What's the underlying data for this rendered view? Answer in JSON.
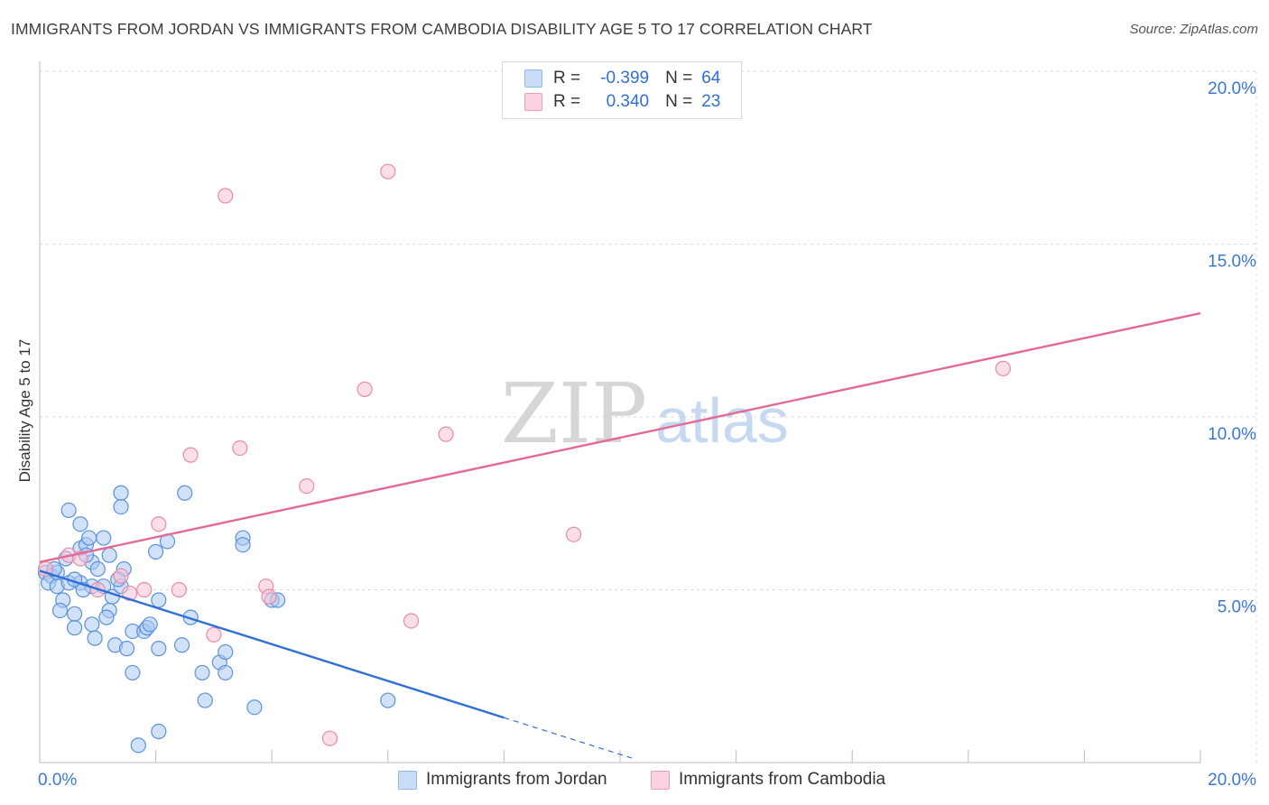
{
  "header": {
    "title": "IMMIGRANTS FROM JORDAN VS IMMIGRANTS FROM CAMBODIA DISABILITY AGE 5 TO 17 CORRELATION CHART",
    "source": "Source: ZipAtlas.com"
  },
  "watermark": {
    "zip": "ZIP",
    "atlas": "atlas"
  },
  "legend": {
    "r_label": "R =",
    "n_label": "N =",
    "rows": [
      {
        "r": "-0.399",
        "n": "64",
        "color": "#8fb6ee",
        "fill": "#c9dcf8"
      },
      {
        "r": "0.340",
        "n": "23",
        "color": "#ef9db7",
        "fill": "#fbd3df"
      }
    ]
  },
  "chart_data": {
    "type": "scatter",
    "title": "IMMIGRANTS FROM JORDAN VS IMMIGRANTS FROM CAMBODIA DISABILITY AGE 5 TO 17 CORRELATION CHART",
    "xlabel": "",
    "ylabel": "Disability Age 5 to 17",
    "xlim": [
      0,
      20
    ],
    "ylim": [
      0,
      20
    ],
    "x_tick_labels": [
      "0.0%",
      "20.0%"
    ],
    "y_tick_labels": [
      "5.0%",
      "10.0%",
      "15.0%",
      "20.0%"
    ],
    "y_ticks": [
      5,
      10,
      15,
      20
    ],
    "x_ticks": [
      0,
      2,
      4,
      6,
      8,
      10,
      12,
      14,
      16,
      18,
      20
    ],
    "grid": true,
    "legend_position": "top-center",
    "series": [
      {
        "name": "Immigrants from Jordan",
        "color": "#5b92dd",
        "fill": "#a9c8f2",
        "line_color": "#2f6fd6",
        "trend": {
          "x_start": 0,
          "y_start": 5.55,
          "x_solid_end": 8.0,
          "x_end": 10.2
        },
        "points": [
          [
            0.1,
            5.5
          ],
          [
            0.2,
            5.4
          ],
          [
            0.15,
            5.2
          ],
          [
            0.3,
            5.5
          ],
          [
            0.3,
            5.1
          ],
          [
            0.4,
            4.7
          ],
          [
            0.35,
            4.4
          ],
          [
            0.5,
            5.2
          ],
          [
            0.45,
            5.9
          ],
          [
            0.5,
            7.3
          ],
          [
            0.7,
            6.2
          ],
          [
            0.8,
            6.3
          ],
          [
            0.7,
            6.9
          ],
          [
            0.85,
            6.5
          ],
          [
            0.9,
            5.8
          ],
          [
            0.8,
            6.0
          ],
          [
            0.7,
            5.2
          ],
          [
            0.9,
            5.1
          ],
          [
            0.6,
            4.3
          ],
          [
            0.6,
            3.9
          ],
          [
            0.9,
            4.0
          ],
          [
            0.95,
            3.6
          ],
          [
            1.1,
            6.5
          ],
          [
            1.2,
            6.0
          ],
          [
            1.0,
            5.6
          ],
          [
            1.1,
            5.1
          ],
          [
            1.25,
            4.8
          ],
          [
            1.2,
            4.4
          ],
          [
            1.15,
            4.2
          ],
          [
            1.3,
            3.4
          ],
          [
            1.4,
            7.8
          ],
          [
            1.4,
            7.4
          ],
          [
            1.45,
            5.6
          ],
          [
            1.4,
            5.1
          ],
          [
            1.5,
            3.3
          ],
          [
            1.6,
            3.8
          ],
          [
            1.6,
            2.6
          ],
          [
            1.8,
            3.8
          ],
          [
            1.85,
            3.9
          ],
          [
            1.9,
            4.0
          ],
          [
            2.0,
            6.1
          ],
          [
            2.05,
            4.7
          ],
          [
            2.05,
            3.3
          ],
          [
            2.2,
            6.4
          ],
          [
            2.5,
            7.8
          ],
          [
            2.6,
            4.2
          ],
          [
            2.45,
            3.4
          ],
          [
            2.8,
            2.6
          ],
          [
            2.85,
            1.8
          ],
          [
            3.1,
            2.9
          ],
          [
            3.2,
            3.2
          ],
          [
            3.2,
            2.6
          ],
          [
            3.5,
            6.5
          ],
          [
            3.5,
            6.3
          ],
          [
            3.7,
            1.6
          ],
          [
            4.0,
            4.7
          ],
          [
            4.1,
            4.7
          ],
          [
            6.0,
            1.8
          ],
          [
            1.7,
            0.5
          ],
          [
            2.05,
            0.9
          ],
          [
            0.25,
            5.6
          ],
          [
            0.6,
            5.3
          ],
          [
            0.75,
            5.0
          ],
          [
            1.35,
            5.3
          ]
        ]
      },
      {
        "name": "Immigrants from Cambodia",
        "color": "#ec8aa8",
        "fill": "#f8c3d3",
        "line_color": "#e36a95",
        "trend": {
          "x_start": 0,
          "y_start": 5.8,
          "x_end": 20,
          "y_end": 13.0
        },
        "points": [
          [
            0.1,
            5.6
          ],
          [
            0.5,
            6.0
          ],
          [
            0.7,
            5.9
          ],
          [
            1.0,
            5.0
          ],
          [
            1.4,
            5.4
          ],
          [
            1.55,
            4.9
          ],
          [
            1.8,
            5.0
          ],
          [
            2.05,
            6.9
          ],
          [
            2.4,
            5.0
          ],
          [
            2.6,
            8.9
          ],
          [
            3.0,
            3.7
          ],
          [
            3.2,
            16.4
          ],
          [
            3.45,
            9.1
          ],
          [
            3.9,
            5.1
          ],
          [
            3.95,
            4.8
          ],
          [
            4.6,
            8.0
          ],
          [
            5.0,
            0.7
          ],
          [
            5.6,
            10.8
          ],
          [
            6.0,
            17.1
          ],
          [
            6.4,
            4.1
          ],
          [
            7.0,
            9.5
          ],
          [
            9.2,
            6.6
          ],
          [
            16.6,
            11.4
          ]
        ]
      }
    ]
  }
}
